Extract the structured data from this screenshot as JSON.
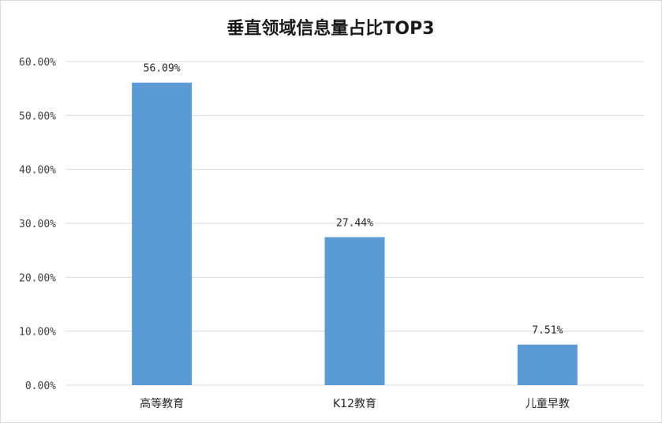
{
  "chart_data": {
    "type": "bar",
    "title": "垂直领域信息量占比TOP3",
    "categories": [
      "高等教育",
      "K12教育",
      "儿童早教"
    ],
    "values": [
      56.09,
      27.44,
      7.51
    ],
    "data_labels": [
      "56.09%",
      "27.44%",
      "7.51%"
    ],
    "yticks": [
      "0.00%",
      "10.00%",
      "20.00%",
      "30.00%",
      "40.00%",
      "50.00%",
      "60.00%"
    ],
    "ylim": [
      0,
      60
    ],
    "grid": true,
    "legend": "none",
    "bar_color": "#5b9bd5",
    "grid_color": "#d9d9d9"
  }
}
